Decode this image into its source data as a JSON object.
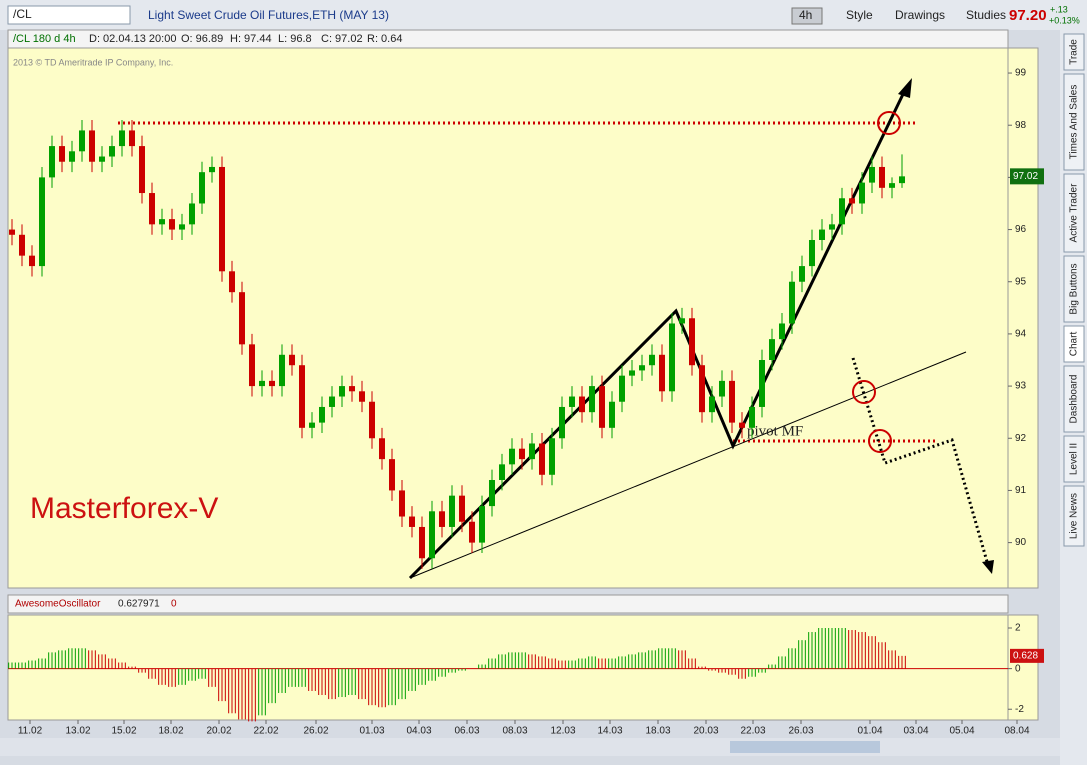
{
  "toolbar": {
    "symbol": "/CL",
    "description": "Light Sweet Crude Oil Futures,ETH (MAY 13)",
    "period": "4h",
    "style": "Style",
    "drawings": "Drawings",
    "studies": "Studies",
    "last": "97.20",
    "change": "+.13",
    "change_pct": "+0.13%"
  },
  "info": {
    "study": "/CL 180 d 4h",
    "date": "D: 02.04.13 20:00",
    "open": "O: 96.89",
    "high": "H: 97.44",
    "low": "L: 96.8",
    "close": "C: 97.02",
    "range": "R: 0.64"
  },
  "copyright": "2013 © TD Ameritrade IP Company, Inc.",
  "watermark": "Masterforex-V",
  "pivot_label": "pivot MF",
  "sidebar": [
    "Trade",
    "Times And Sales",
    "Active Trader",
    "Big Buttons",
    "Chart",
    "Dashboard",
    "Level II",
    "Live News"
  ],
  "chart_data": [
    {
      "type": "candlestick",
      "up_color": "#00a000",
      "down_color": "#cc0000",
      "open": [
        96.0,
        95.9,
        95.5,
        95.3,
        97.0,
        97.6,
        97.3,
        97.5,
        97.9,
        97.3,
        97.4,
        97.6,
        97.9,
        97.6,
        96.7,
        96.1,
        96.2,
        96.0,
        96.1,
        96.5,
        97.1,
        97.2,
        95.2,
        94.8,
        93.8,
        93.0,
        93.1,
        93.0,
        93.6,
        93.4,
        92.2,
        92.3,
        92.6,
        92.8,
        93.0,
        92.9,
        92.7,
        92.0,
        91.6,
        91.0,
        90.5,
        90.3,
        89.7,
        90.6,
        90.3,
        90.9,
        90.4,
        90.0,
        90.7,
        91.2,
        91.5,
        91.8,
        91.6,
        91.9,
        91.3,
        92.0,
        92.6,
        92.8,
        92.5,
        93.0,
        92.2,
        92.7,
        93.2,
        93.3,
        93.4,
        93.6,
        92.9,
        94.2,
        94.3,
        93.4,
        92.5,
        92.8,
        93.1,
        92.3,
        92.2,
        92.6,
        93.5,
        93.9,
        94.2,
        95.0,
        95.3,
        95.8,
        96.0,
        96.1,
        96.6,
        96.5,
        96.9,
        97.2,
        96.8,
        96.89
      ],
      "high": [
        96.2,
        96.1,
        95.7,
        97.2,
        97.8,
        97.8,
        97.7,
        98.1,
        98.1,
        97.6,
        97.8,
        98.1,
        98.1,
        97.8,
        96.9,
        96.4,
        96.4,
        96.3,
        96.7,
        97.3,
        97.4,
        97.4,
        95.4,
        95.0,
        94.0,
        93.3,
        93.3,
        93.8,
        93.8,
        93.6,
        92.5,
        92.8,
        93.0,
        93.2,
        93.2,
        93.1,
        92.9,
        92.2,
        91.8,
        91.2,
        90.7,
        90.5,
        90.8,
        90.8,
        91.1,
        91.1,
        90.6,
        90.9,
        91.4,
        91.7,
        92.0,
        92.0,
        92.1,
        92.1,
        92.2,
        92.8,
        93.0,
        93.0,
        93.2,
        93.2,
        92.9,
        93.4,
        93.5,
        93.6,
        93.8,
        93.8,
        94.4,
        94.5,
        94.5,
        93.6,
        93.0,
        93.3,
        93.3,
        92.5,
        92.8,
        93.7,
        94.1,
        94.4,
        95.2,
        95.5,
        96.0,
        96.2,
        96.3,
        96.8,
        96.8,
        97.1,
        97.4,
        97.4,
        97.0,
        97.44
      ],
      "low": [
        95.7,
        95.3,
        95.1,
        95.1,
        96.8,
        97.1,
        97.1,
        97.3,
        97.1,
        97.1,
        97.2,
        97.4,
        97.4,
        96.5,
        95.9,
        95.9,
        95.8,
        95.8,
        95.9,
        96.3,
        96.9,
        95.0,
        94.6,
        93.6,
        92.8,
        92.8,
        92.8,
        92.8,
        93.2,
        92.0,
        92.0,
        92.1,
        92.4,
        92.6,
        92.7,
        92.5,
        91.8,
        91.4,
        90.8,
        90.3,
        90.1,
        89.5,
        89.5,
        90.1,
        90.1,
        90.2,
        89.8,
        89.8,
        90.5,
        91.0,
        91.3,
        91.4,
        91.4,
        91.1,
        91.1,
        91.8,
        92.4,
        92.3,
        92.3,
        92.0,
        92.0,
        92.5,
        93.0,
        93.1,
        93.2,
        92.7,
        92.7,
        94.0,
        93.2,
        92.3,
        92.3,
        92.6,
        92.1,
        92.0,
        92.0,
        92.4,
        93.3,
        93.7,
        94.0,
        94.8,
        95.1,
        95.6,
        95.8,
        95.9,
        96.3,
        96.3,
        96.7,
        96.6,
        96.6,
        96.8
      ],
      "close": [
        95.9,
        95.5,
        95.3,
        97.0,
        97.6,
        97.3,
        97.5,
        97.9,
        97.3,
        97.4,
        97.6,
        97.9,
        97.6,
        96.7,
        96.1,
        96.2,
        96.0,
        96.1,
        96.5,
        97.1,
        97.2,
        95.2,
        94.8,
        93.8,
        93.0,
        93.1,
        93.0,
        93.6,
        93.4,
        92.2,
        92.3,
        92.6,
        92.8,
        93.0,
        92.9,
        92.7,
        92.0,
        91.6,
        91.0,
        90.5,
        90.3,
        89.7,
        90.6,
        90.3,
        90.9,
        90.4,
        90.0,
        90.7,
        91.2,
        91.5,
        91.8,
        91.6,
        91.9,
        91.3,
        92.0,
        92.6,
        92.8,
        92.5,
        93.0,
        92.2,
        92.7,
        93.2,
        93.3,
        93.4,
        93.6,
        92.9,
        94.2,
        94.3,
        93.4,
        92.5,
        92.8,
        93.1,
        92.3,
        92.2,
        92.6,
        93.5,
        93.9,
        94.2,
        95.0,
        95.3,
        95.8,
        96.0,
        96.1,
        96.6,
        96.5,
        96.9,
        97.2,
        96.8,
        96.89,
        97.02
      ],
      "ylim": [
        89.13,
        99.48
      ],
      "yticks": [
        90,
        91,
        92,
        93,
        94,
        95,
        96,
        97,
        98,
        99
      ],
      "xlim": [
        -0.4,
        99.6
      ],
      "xticks": [
        {
          "value": 1.8,
          "label": "11.02"
        },
        {
          "value": 6.6,
          "label": "13.02"
        },
        {
          "value": 11.2,
          "label": "15.02"
        },
        {
          "value": 15.9,
          "label": "18.02"
        },
        {
          "value": 20.7,
          "label": "20.02"
        },
        {
          "value": 25.4,
          "label": "22.02"
        },
        {
          "value": 30.4,
          "label": "26.02"
        },
        {
          "value": 36,
          "label": "01.03"
        },
        {
          "value": 40.7,
          "label": "04.03"
        },
        {
          "value": 45.5,
          "label": "06.03"
        },
        {
          "value": 50.3,
          "label": "08.03"
        },
        {
          "value": 55.1,
          "label": "12.03"
        },
        {
          "value": 59.8,
          "label": "14.03"
        },
        {
          "value": 64.6,
          "label": "18.03"
        },
        {
          "value": 69.4,
          "label": "20.03"
        },
        {
          "value": 74.1,
          "label": "22.03"
        },
        {
          "value": 78.9,
          "label": "26.03"
        },
        {
          "value": 85.8,
          "label": "01.04"
        },
        {
          "value": 90.4,
          "label": "03.04"
        },
        {
          "value": 95,
          "label": "05.04"
        },
        {
          "value": 100.5,
          "label": "08.04"
        }
      ]
    },
    {
      "type": "bar",
      "title": "AwesomeOscillator",
      "header_value": 0.627971,
      "header_zero": 0,
      "last_label": "0.628",
      "up_color": "#00a000",
      "down_color": "#cc0000",
      "values": [
        0.3,
        0.3,
        0.4,
        0.5,
        0.8,
        0.9,
        1.0,
        1.0,
        0.9,
        0.7,
        0.5,
        0.3,
        0.1,
        -0.2,
        -0.5,
        -0.8,
        -0.9,
        -0.8,
        -0.6,
        -0.5,
        -0.9,
        -1.6,
        -2.2,
        -2.5,
        -2.6,
        -2.3,
        -1.7,
        -1.2,
        -0.9,
        -0.9,
        -1.1,
        -1.3,
        -1.5,
        -1.4,
        -1.3,
        -1.5,
        -1.8,
        -1.9,
        -1.8,
        -1.5,
        -1.1,
        -0.8,
        -0.6,
        -0.4,
        -0.2,
        -0.1,
        0.0,
        0.2,
        0.5,
        0.7,
        0.8,
        0.8,
        0.7,
        0.6,
        0.5,
        0.4,
        0.4,
        0.5,
        0.6,
        0.5,
        0.5,
        0.6,
        0.7,
        0.8,
        0.9,
        1.0,
        1.0,
        0.9,
        0.5,
        0.1,
        -0.1,
        -0.2,
        -0.3,
        -0.5,
        -0.4,
        -0.2,
        0.2,
        0.6,
        1.0,
        1.4,
        1.8,
        2.0,
        2.0,
        2.0,
        1.9,
        1.8,
        1.6,
        1.3,
        0.9,
        0.628
      ],
      "ylim": [
        -2.53,
        2.64
      ],
      "yticks": [
        2,
        0,
        -2
      ]
    }
  ]
}
